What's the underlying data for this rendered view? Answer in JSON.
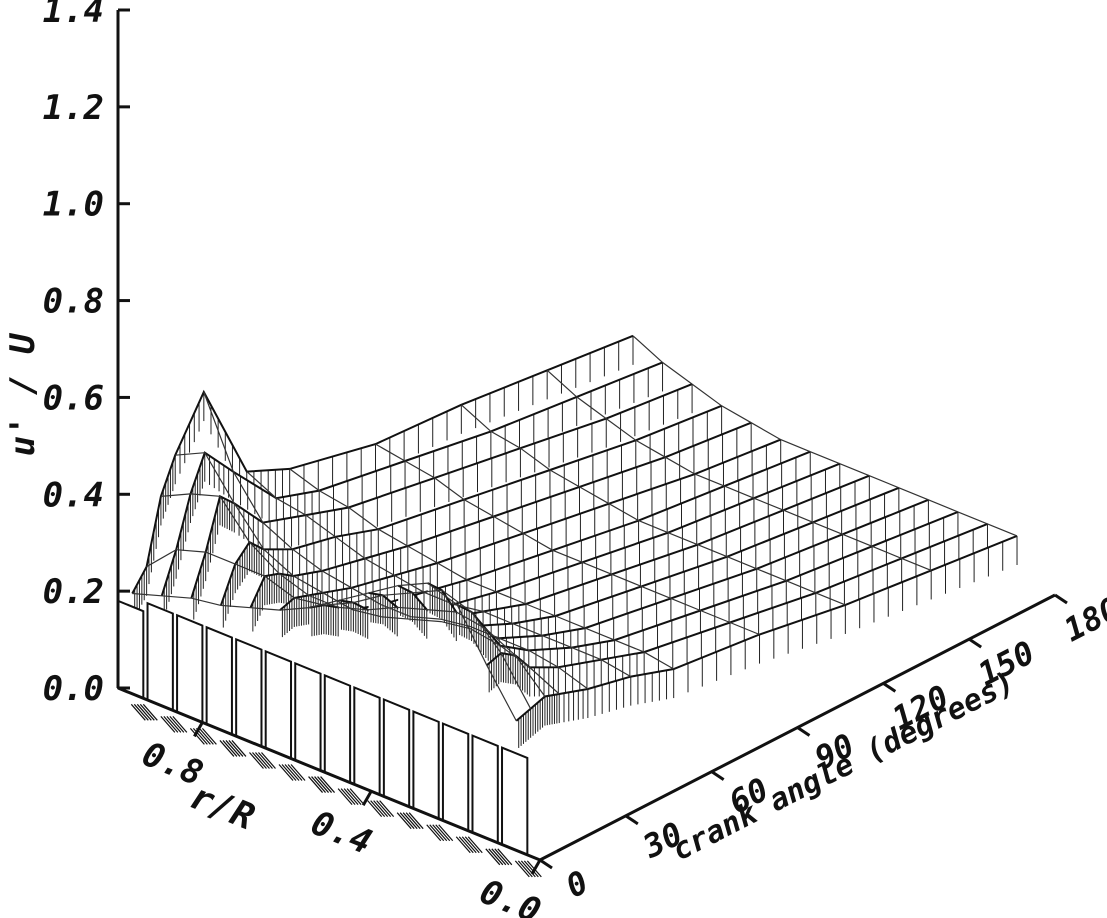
{
  "chart_data": {
    "type": "surface3d",
    "title": "",
    "zlabel": "u' / U",
    "xlabel": "r/R",
    "ylabel": "crank angle (degrees)",
    "z_ticks": [
      "0.0",
      "0.2",
      "0.4",
      "0.6",
      "0.8",
      "1.0",
      "1.2",
      "1.4"
    ],
    "z_tick_values": [
      0.0,
      0.2,
      0.4,
      0.6,
      0.8,
      1.0,
      1.2,
      1.4
    ],
    "zlim": [
      0.0,
      1.4
    ],
    "x_ticks": [
      "0.8",
      "0.4",
      "0.0"
    ],
    "x_tick_values": [
      0.8,
      0.4,
      0.0
    ],
    "xlim": [
      0.0,
      1.0
    ],
    "y_ticks": [
      "0",
      "30",
      "60",
      "90",
      "120",
      "150",
      "180"
    ],
    "y_tick_values": [
      0,
      30,
      60,
      90,
      120,
      150,
      180
    ],
    "ylim": [
      0,
      180
    ],
    "radial_positions": [
      1.0,
      0.93,
      0.86,
      0.79,
      0.72,
      0.65,
      0.58,
      0.51,
      0.44,
      0.37,
      0.3,
      0.23,
      0.16,
      0.09
    ],
    "profile_crank_angles": [
      180,
      150,
      120,
      90,
      60,
      45,
      30,
      20,
      15,
      10,
      5
    ],
    "profile_values": [
      [
        0.18,
        0.2,
        0.22,
        0.23,
        0.27,
        0.31,
        0.52,
        0.42,
        0.35,
        0.22,
        0.18
      ],
      [
        0.15,
        0.17,
        0.19,
        0.22,
        0.25,
        0.28,
        0.38,
        0.45,
        0.38,
        0.28,
        0.2
      ],
      [
        0.13,
        0.15,
        0.18,
        0.21,
        0.24,
        0.27,
        0.3,
        0.37,
        0.4,
        0.3,
        0.22
      ],
      [
        0.11,
        0.13,
        0.16,
        0.19,
        0.22,
        0.25,
        0.27,
        0.3,
        0.33,
        0.3,
        0.23
      ],
      [
        0.1,
        0.12,
        0.15,
        0.18,
        0.21,
        0.23,
        0.25,
        0.27,
        0.29,
        0.3,
        0.25
      ],
      [
        0.09,
        0.11,
        0.14,
        0.17,
        0.2,
        0.22,
        0.24,
        0.26,
        0.27,
        0.28,
        0.27
      ],
      [
        0.09,
        0.11,
        0.13,
        0.16,
        0.19,
        0.21,
        0.23,
        0.25,
        0.27,
        0.29,
        0.3
      ],
      [
        0.09,
        0.11,
        0.13,
        0.16,
        0.19,
        0.21,
        0.23,
        0.26,
        0.29,
        0.32,
        0.34
      ],
      [
        0.09,
        0.11,
        0.13,
        0.16,
        0.19,
        0.22,
        0.25,
        0.28,
        0.32,
        0.36,
        0.38
      ],
      [
        0.09,
        0.11,
        0.13,
        0.16,
        0.19,
        0.22,
        0.26,
        0.3,
        0.34,
        0.39,
        0.42
      ],
      [
        0.09,
        0.11,
        0.13,
        0.16,
        0.19,
        0.22,
        0.26,
        0.31,
        0.36,
        0.42,
        0.45
      ],
      [
        0.09,
        0.11,
        0.13,
        0.16,
        0.19,
        0.22,
        0.26,
        0.3,
        0.35,
        0.4,
        0.43
      ],
      [
        0.09,
        0.11,
        0.13,
        0.16,
        0.19,
        0.22,
        0.25,
        0.28,
        0.32,
        0.34,
        0.33
      ],
      [
        0.09,
        0.11,
        0.13,
        0.16,
        0.18,
        0.21,
        0.23,
        0.25,
        0.26,
        0.25,
        0.24
      ]
    ],
    "grid": false,
    "legend": "none"
  }
}
